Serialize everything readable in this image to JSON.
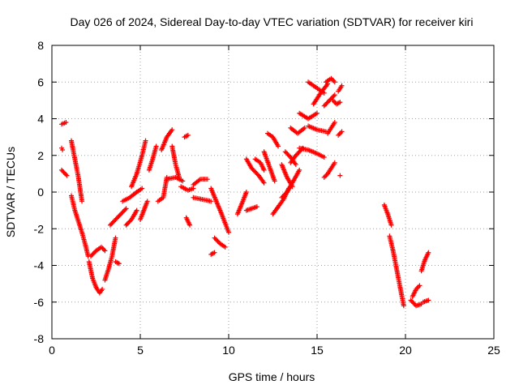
{
  "chart_data": {
    "type": "scatter",
    "title": "Day 026 of 2024, Sidereal Day-to-day VTEC variation (SDTVAR) for receiver kiri",
    "xlabel": "GPS time / hours",
    "ylabel": "SDTVAR / TECUs",
    "xlim": [
      0,
      25
    ],
    "ylim": [
      -8,
      8
    ],
    "xticks": [
      0,
      5,
      10,
      15,
      20,
      25
    ],
    "yticks": [
      -8,
      -6,
      -4,
      -2,
      0,
      2,
      4,
      6,
      8
    ],
    "grid": true,
    "marker": "+",
    "color": "#ff0000",
    "segments": [
      {
        "x": [
          0.55,
          0.8
        ],
        "y": [
          3.7,
          3.8
        ]
      },
      {
        "x": [
          0.55,
          0.85
        ],
        "y": [
          1.2,
          0.9
        ]
      },
      {
        "x": [
          0.55,
          0.6
        ],
        "y": [
          2.4,
          2.3
        ]
      },
      {
        "x": [
          1.1,
          1.3,
          1.5,
          1.7,
          1.9,
          2.05
        ],
        "y": [
          -0.2,
          -1.0,
          -1.6,
          -2.2,
          -2.9,
          -3.5
        ]
      },
      {
        "x": [
          1.1,
          1.3,
          1.5,
          1.7
        ],
        "y": [
          2.8,
          1.8,
          0.8,
          -0.5
        ]
      },
      {
        "x": [
          2.1,
          2.3,
          2.5,
          2.7,
          2.85
        ],
        "y": [
          -3.8,
          -4.7,
          -5.2,
          -5.5,
          -5.3
        ]
      },
      {
        "x": [
          2.2,
          2.5,
          2.8,
          3.0
        ],
        "y": [
          -3.5,
          -3.2,
          -3.0,
          -3.2
        ]
      },
      {
        "x": [
          3.0,
          3.2,
          3.4,
          3.6
        ],
        "y": [
          -4.8,
          -4.2,
          -3.5,
          -2.5
        ]
      },
      {
        "x": [
          3.3,
          3.6,
          3.9,
          4.2
        ],
        "y": [
          -1.8,
          -1.5,
          -1.2,
          -0.9
        ]
      },
      {
        "x": [
          3.6,
          3.8
        ],
        "y": [
          -3.8,
          -3.9
        ]
      },
      {
        "x": [
          4.0,
          4.4,
          4.8,
          5.1
        ],
        "y": [
          -0.5,
          -0.3,
          0.0,
          0.2
        ]
      },
      {
        "x": [
          4.2,
          4.5,
          4.8
        ],
        "y": [
          -1.8,
          -1.5,
          -1.0
        ]
      },
      {
        "x": [
          4.5,
          4.8,
          5.1,
          5.3
        ],
        "y": [
          0.3,
          1.0,
          2.0,
          2.8
        ]
      },
      {
        "x": [
          5.0,
          5.2,
          5.4
        ],
        "y": [
          -1.5,
          -1.0,
          -0.5
        ]
      },
      {
        "x": [
          5.5,
          5.7,
          5.9
        ],
        "y": [
          1.2,
          1.8,
          2.5
        ]
      },
      {
        "x": [
          6.0,
          6.3,
          6.5
        ],
        "y": [
          -0.5,
          -0.3,
          0.8
        ]
      },
      {
        "x": [
          6.2,
          6.5,
          6.8
        ],
        "y": [
          2.3,
          3.0,
          3.4
        ]
      },
      {
        "x": [
          6.8,
          7.0,
          7.2
        ],
        "y": [
          2.5,
          1.5,
          0.8
        ]
      },
      {
        "x": [
          6.5,
          7.0,
          7.4
        ],
        "y": [
          0.7,
          0.8,
          0.6
        ]
      },
      {
        "x": [
          7.3,
          7.7,
          8.0
        ],
        "y": [
          0.3,
          0.1,
          0.2
        ]
      },
      {
        "x": [
          7.6,
          7.8
        ],
        "y": [
          -1.4,
          -1.8
        ]
      },
      {
        "x": [
          7.5,
          7.7
        ],
        "y": [
          3.0,
          3.1
        ]
      },
      {
        "x": [
          8.0,
          8.4,
          8.8
        ],
        "y": [
          0.4,
          0.7,
          0.7
        ]
      },
      {
        "x": [
          8.0,
          8.5,
          9.0
        ],
        "y": [
          -0.3,
          -0.4,
          -0.5
        ]
      },
      {
        "x": [
          9.0,
          9.3,
          9.6,
          10.0
        ],
        "y": [
          0.2,
          -0.5,
          -1.2,
          -2.2
        ]
      },
      {
        "x": [
          9.2,
          9.5,
          9.8
        ],
        "y": [
          -2.5,
          -2.8,
          -3.0
        ]
      },
      {
        "x": [
          9.0,
          9.2
        ],
        "y": [
          -3.4,
          -3.3
        ]
      },
      {
        "x": [
          10.5,
          10.8,
          11.0
        ],
        "y": [
          -1.2,
          -0.5,
          0.0
        ]
      },
      {
        "x": [
          11.0,
          11.3,
          11.6
        ],
        "y": [
          -1.0,
          -0.9,
          -0.8
        ]
      },
      {
        "x": [
          11.0,
          11.3,
          11.7,
          12.0
        ],
        "y": [
          1.8,
          1.3,
          0.9,
          0.5
        ]
      },
      {
        "x": [
          11.5,
          11.8,
          12.0
        ],
        "y": [
          1.8,
          1.6,
          1.2
        ]
      },
      {
        "x": [
          12.0,
          12.3,
          12.6
        ],
        "y": [
          2.2,
          1.4,
          0.6
        ]
      },
      {
        "x": [
          12.2,
          12.5,
          12.8
        ],
        "y": [
          3.2,
          3.0,
          2.5
        ]
      },
      {
        "x": [
          12.5,
          12.8,
          13.1,
          13.4
        ],
        "y": [
          -1.2,
          -0.8,
          -0.4,
          0.2
        ]
      },
      {
        "x": [
          13.0,
          13.3,
          13.6,
          14.0
        ],
        "y": [
          -0.3,
          0.0,
          0.5,
          1.2
        ]
      },
      {
        "x": [
          13.0,
          13.3,
          13.6
        ],
        "y": [
          1.5,
          0.8,
          0.3
        ]
      },
      {
        "x": [
          13.2,
          13.5,
          13.8
        ],
        "y": [
          2.2,
          1.9,
          1.5
        ]
      },
      {
        "x": [
          13.5,
          13.8,
          14.2
        ],
        "y": [
          1.6,
          2.0,
          2.4
        ]
      },
      {
        "x": [
          14.0,
          14.5,
          15.0,
          15.4
        ],
        "y": [
          2.4,
          2.3,
          2.1,
          1.9
        ]
      },
      {
        "x": [
          13.5,
          13.9,
          14.3
        ],
        "y": [
          3.5,
          3.2,
          3.5
        ]
      },
      {
        "x": [
          14.0,
          14.5,
          15.0
        ],
        "y": [
          4.3,
          4.0,
          4.3
        ]
      },
      {
        "x": [
          14.5,
          15.0,
          15.5
        ],
        "y": [
          3.6,
          3.4,
          3.3
        ]
      },
      {
        "x": [
          14.8,
          15.2,
          15.6
        ],
        "y": [
          4.8,
          5.4,
          5.9
        ]
      },
      {
        "x": [
          14.5,
          14.8,
          15.1,
          15.4
        ],
        "y": [
          6.0,
          5.8,
          5.6,
          5.4
        ]
      },
      {
        "x": [
          15.4,
          15.7,
          16.0
        ],
        "y": [
          4.7,
          5.0,
          5.3
        ]
      },
      {
        "x": [
          15.5,
          15.8,
          16.0
        ],
        "y": [
          6.0,
          6.2,
          6.0
        ]
      },
      {
        "x": [
          15.6,
          15.8,
          16.0
        ],
        "y": [
          3.2,
          3.5,
          3.8
        ]
      },
      {
        "x": [
          15.4,
          15.6,
          15.8,
          16.0
        ],
        "y": [
          0.8,
          1.0,
          1.3,
          1.6
        ]
      },
      {
        "x": [
          15.9,
          16.1,
          16.3
        ],
        "y": [
          5.0,
          4.8,
          4.9
        ]
      },
      {
        "x": [
          16.2,
          16.4
        ],
        "y": [
          5.5,
          5.8
        ]
      },
      {
        "x": [
          16.2,
          16.4
        ],
        "y": [
          3.1,
          3.3
        ]
      },
      {
        "x": [
          16.3
        ],
        "y": [
          0.9
        ]
      },
      {
        "x": [
          18.8,
          19.0,
          19.2
        ],
        "y": [
          -0.7,
          -1.2,
          -1.8
        ]
      },
      {
        "x": [
          19.1,
          19.3,
          19.5,
          19.7,
          19.9
        ],
        "y": [
          -2.4,
          -3.2,
          -4.2,
          -5.2,
          -6.2
        ]
      },
      {
        "x": [
          20.3,
          20.6,
          20.9
        ],
        "y": [
          -5.9,
          -6.2,
          -6.1
        ]
      },
      {
        "x": [
          20.4,
          20.6,
          20.8
        ],
        "y": [
          -5.7,
          -5.3,
          -5.1
        ]
      },
      {
        "x": [
          20.9,
          21.1,
          21.3
        ],
        "y": [
          -4.3,
          -3.7,
          -3.3
        ]
      },
      {
        "x": [
          21.0,
          21.3
        ],
        "y": [
          -6.0,
          -5.9
        ]
      }
    ]
  }
}
